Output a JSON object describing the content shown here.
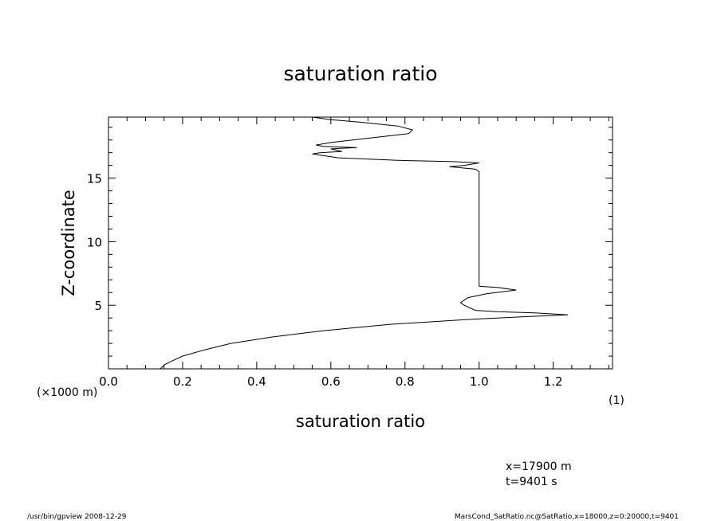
{
  "chart_data": {
    "type": "line",
    "title": "saturation ratio",
    "xlabel": "saturation ratio",
    "ylabel": "Z-coordinate",
    "x_unit_label": "(1)",
    "y_unit_label": "(×1000 m)",
    "xlim": [
      0.0,
      1.36
    ],
    "ylim": [
      0,
      19.8
    ],
    "x_ticks": [
      0.0,
      0.2,
      0.4,
      0.6,
      0.8,
      1.0,
      1.2
    ],
    "x_tick_labels": [
      "0.0",
      "0.2",
      "0.4",
      "0.6",
      "0.8",
      "1.0",
      "1.2"
    ],
    "y_ticks": [
      5,
      10,
      15
    ],
    "y_tick_labels": [
      "5",
      "10",
      "15"
    ],
    "grid": false,
    "series": [
      {
        "x": [
          0.14,
          0.15,
          0.17,
          0.2,
          0.26,
          0.33,
          0.44,
          0.58,
          0.76,
          0.98,
          1.12,
          1.2,
          1.24,
          1.15,
          1.05,
          0.99,
          0.96,
          0.95,
          0.97,
          1.02,
          1.1,
          1.05,
          1.0,
          1.0,
          1.0,
          1.0,
          1.0,
          0.99,
          0.92,
          0.96,
          1.0,
          0.93,
          0.78,
          0.62,
          0.55,
          0.57,
          0.63,
          0.6,
          0.67,
          0.58,
          0.56,
          0.6,
          0.72,
          0.81,
          0.82,
          0.78,
          0.68,
          0.6,
          0.55
        ],
        "y": [
          0.0,
          0.3,
          0.6,
          1.0,
          1.5,
          2.0,
          2.5,
          3.0,
          3.5,
          3.9,
          4.1,
          4.2,
          4.25,
          4.4,
          4.5,
          4.6,
          5.0,
          5.2,
          5.6,
          5.9,
          6.2,
          6.4,
          6.5,
          8.5,
          10.5,
          13.0,
          15.5,
          15.7,
          15.9,
          16.0,
          16.2,
          16.3,
          16.4,
          16.6,
          16.9,
          17.0,
          17.1,
          17.3,
          17.4,
          17.5,
          17.6,
          17.8,
          18.2,
          18.5,
          18.8,
          19.1,
          19.4,
          19.6,
          19.8
        ]
      }
    ],
    "annotations": [
      "x=17900 m",
      "t=9401 s"
    ]
  },
  "footer": {
    "left": "/usr/bin/gpview  2008-12-29",
    "right": "MarsCond_SatRatio.nc@SatRatio,x=18000,z=0:20000,t=9401"
  }
}
